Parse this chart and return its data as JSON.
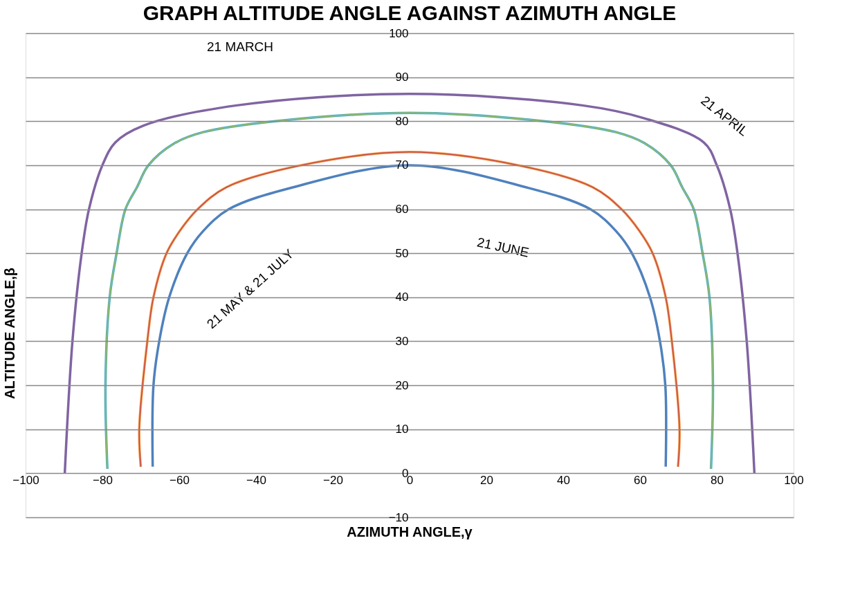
{
  "chart_data": {
    "type": "line",
    "title": "GRAPH ALTITUDE ANGLE AGAINST AZIMUTH ANGLE",
    "xlabel": "AZIMUTH ANGLE,γ",
    "ylabel": "ALTITUDE ANGLE,β",
    "xlim": [
      -100,
      100
    ],
    "xticks": [
      -100,
      -80,
      -60,
      -40,
      -20,
      0,
      20,
      40,
      60,
      80,
      100
    ],
    "ylim": [
      -10,
      100
    ],
    "yticks": [
      -10,
      0,
      10,
      20,
      30,
      40,
      50,
      60,
      70,
      80,
      90,
      100
    ],
    "grid": "y",
    "marker": "none",
    "line_style": "solid",
    "series": [
      {
        "color": "#4f81bd",
        "x": [
          -66.9,
          -66.7,
          -65.2,
          -62.6,
          -57.9,
          -53.8,
          -47.1,
          -30.3,
          0,
          30.3,
          47.1,
          53.8,
          57.9,
          62.6,
          65.2,
          66.6,
          66.7
        ],
        "values": [
          1.5,
          20,
          30,
          40,
          50,
          55,
          60,
          65,
          70,
          65,
          60,
          55,
          50,
          40,
          30,
          20,
          1.5
        ]
      },
      {
        "color": "#c0504d",
        "x": [
          -70,
          -70.4,
          -68.3,
          -66.7,
          -63.3,
          -59.9,
          -55.2,
          -47.7,
          -28.2,
          0,
          28.2,
          47.7,
          55.2,
          59.9,
          63.3,
          66.7,
          68.3,
          70.3,
          69.9
        ],
        "values": [
          1.5,
          10,
          30,
          40,
          50,
          55,
          60,
          65,
          70,
          73,
          70,
          65,
          60,
          55,
          50,
          40,
          30,
          10,
          1.5
        ]
      },
      {
        "color": "#9bbb59",
        "x": [
          -78.7,
          -79.2,
          -78.1,
          -76.3,
          -74,
          -71,
          -68,
          -61.2,
          -53.8,
          -35,
          0,
          35,
          53.8,
          61.2,
          68,
          71,
          74,
          76.3,
          78.1,
          79,
          78.5
        ],
        "values": [
          1,
          20,
          40,
          50,
          60,
          65,
          70,
          75,
          77.5,
          80,
          81.9,
          80,
          77.5,
          75,
          70,
          65,
          60,
          50,
          40,
          20,
          1
        ]
      },
      {
        "color": "#8064a2",
        "x": [
          -89.8,
          -87.8,
          -85.4,
          -83.5,
          -80,
          -76.6,
          -69.3,
          -45,
          0,
          45,
          61,
          76.6,
          80,
          83.5,
          85.4,
          87.8,
          89.8
        ],
        "values": [
          0,
          30,
          50,
          60,
          70,
          75.2,
          79,
          83.6,
          86.2,
          83.6,
          80.7,
          75.2,
          70,
          60,
          50,
          30,
          0
        ]
      },
      {
        "color": "#4bacc6",
        "x": [
          -78.7,
          -79.2,
          -78.1,
          -76.3,
          -74,
          -71,
          -68,
          -61.2,
          -53.8,
          -35,
          0,
          35,
          53.8,
          61.2,
          68,
          71,
          74,
          76.3,
          78.1,
          79,
          78.5
        ],
        "values": [
          1,
          20,
          40,
          50,
          60,
          65,
          70,
          75,
          77.5,
          80,
          81.9,
          80,
          77.5,
          75,
          70,
          65,
          60,
          50,
          40,
          20,
          1
        ]
      },
      {
        "color": "#f79646",
        "x": [
          -70,
          -70.4,
          -68.3,
          -66.7,
          -63.3,
          -59.9,
          -55.2,
          -47.7,
          -28.2,
          0,
          28.2,
          47.7,
          55.2,
          59.9,
          63.3,
          66.7,
          68.3,
          70.3,
          69.9
        ],
        "values": [
          1.5,
          10,
          30,
          40,
          50,
          55,
          60,
          65,
          70,
          73,
          70,
          65,
          60,
          55,
          50,
          40,
          30,
          10,
          1.5
        ]
      }
    ],
    "annotations": [
      "21 MARCH",
      "21 APRIL",
      "21 MAY & 21 JULY",
      "21 JUNE"
    ]
  }
}
